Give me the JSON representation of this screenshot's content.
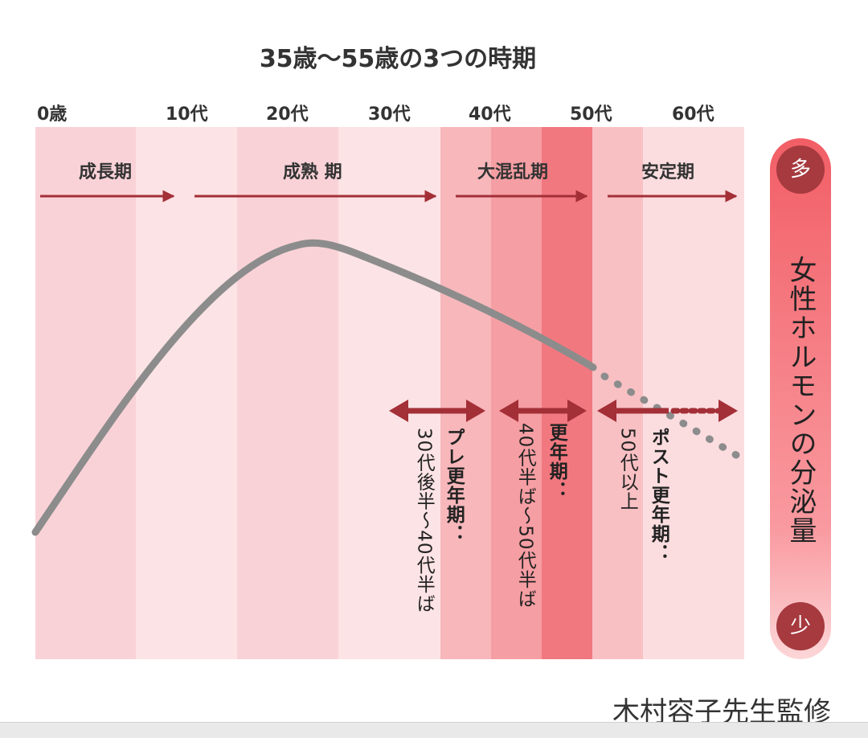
{
  "title": "35歳〜55歳の3つの時期",
  "age_labels": [
    "0歳",
    "10代",
    "20代",
    "30代",
    "40代",
    "50代",
    "60代"
  ],
  "phases": [
    "成長期",
    "成熟 期",
    "大混乱期",
    "安定期"
  ],
  "periods": [
    {
      "name": "プレ更年期：",
      "range": "30代後半〜40代半ば"
    },
    {
      "name": "更年期：",
      "range": "40代半ば〜50代半ば"
    },
    {
      "name": "ポスト更年期：",
      "range": "50代以上"
    }
  ],
  "scale": {
    "label": "女性ホルモンの分泌量",
    "high": "多",
    "low": "少"
  },
  "credit": "木村容子先生監修",
  "colors": {
    "curve": "#8c8c8c",
    "arrow": "#a32f37",
    "accent": "#f25e66"
  }
}
